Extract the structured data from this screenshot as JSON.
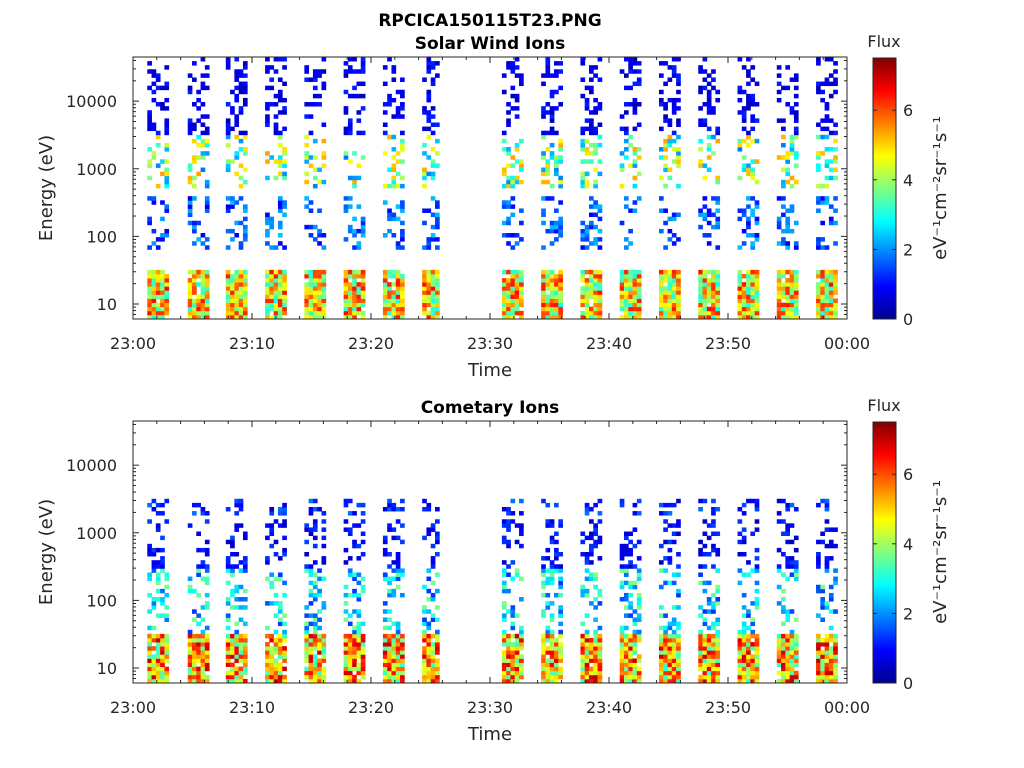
{
  "figure": {
    "filename_title": "RPCICA150115T23.PNG"
  },
  "colorbar": {
    "title": "Flux",
    "unit_label": "eV⁻¹cm⁻²sr⁻¹s⁻¹",
    "ticks": [
      "0",
      "2",
      "4",
      "6"
    ],
    "range": [
      0,
      7.5
    ],
    "colormap": "jet"
  },
  "chart_data": [
    {
      "type": "heatmap",
      "title": "Solar Wind Ions",
      "xlabel": "Time",
      "ylabel": "Energy (eV)",
      "x_ticks": [
        "23:00",
        "23:10",
        "23:20",
        "23:30",
        "23:40",
        "23:50",
        "00:00"
      ],
      "y_ticks": [
        "10",
        "100",
        "1000",
        "10000"
      ],
      "y_scale": "log",
      "ylim": [
        6,
        45000
      ],
      "xlim_minutes": [
        0,
        60
      ],
      "data_gap_minutes": [
        25.5,
        28.5
      ],
      "cycle_starts_minutes": [
        1.2,
        4.6,
        7.8,
        11.1,
        14.4,
        17.7,
        21.0,
        24.3,
        31.0,
        34.3,
        37.6,
        40.9,
        44.2,
        47.5,
        50.8,
        54.1,
        57.4
      ],
      "bands": [
        {
          "e_low": 6,
          "e_high": 30,
          "flux_peak": 6.5
        },
        {
          "e_low": 60,
          "e_high": 400,
          "flux_peak": 2.0
        },
        {
          "e_low": 500,
          "e_high": 3000,
          "flux_peak": 4.5
        },
        {
          "e_low": 3000,
          "e_high": 45000,
          "flux_peak": 1.0
        }
      ]
    },
    {
      "type": "heatmap",
      "title": "Cometary Ions",
      "xlabel": "Time",
      "ylabel": "Energy (eV)",
      "x_ticks": [
        "23:00",
        "23:10",
        "23:20",
        "23:30",
        "23:40",
        "23:50",
        "00:00"
      ],
      "y_ticks": [
        "10",
        "100",
        "1000",
        "10000"
      ],
      "y_scale": "log",
      "ylim": [
        6,
        45000
      ],
      "xlim_minutes": [
        0,
        60
      ],
      "data_gap_minutes": [
        25.5,
        28.5
      ],
      "cycle_starts_minutes": [
        1.2,
        4.6,
        7.8,
        11.1,
        14.4,
        17.7,
        21.0,
        24.3,
        31.0,
        34.3,
        37.6,
        40.9,
        44.2,
        47.5,
        50.8,
        54.1,
        57.4
      ],
      "bands": [
        {
          "e_low": 6,
          "e_high": 30,
          "flux_peak": 7.0
        },
        {
          "e_low": 30,
          "e_high": 300,
          "flux_peak": 3.2
        },
        {
          "e_low": 300,
          "e_high": 1500,
          "flux_peak": 1.2
        },
        {
          "e_low": 1800,
          "e_high": 3000,
          "flux_peak": 1.5
        }
      ]
    }
  ]
}
